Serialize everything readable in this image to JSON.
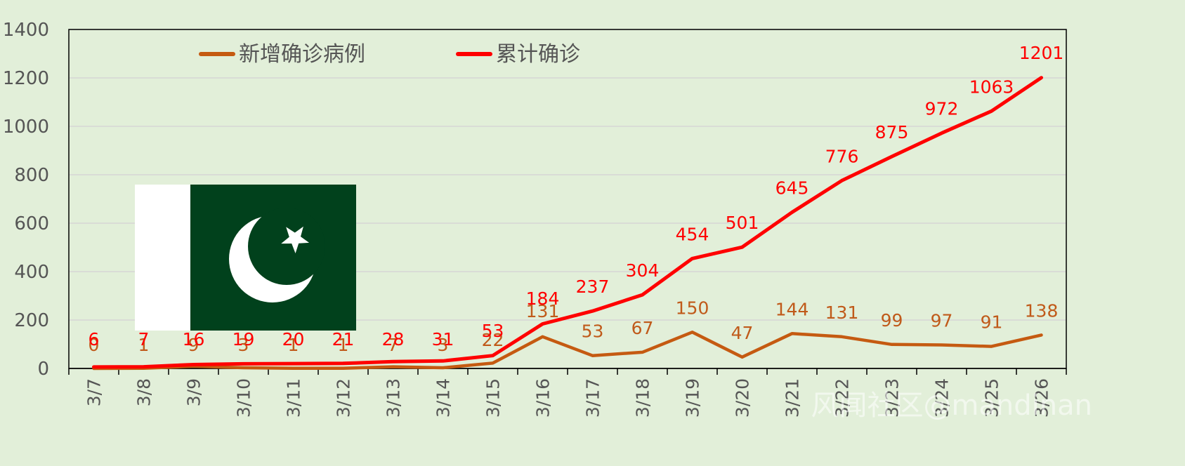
{
  "colors": {
    "background": "#e2efd9",
    "new_cases": "#c55a11",
    "cumulative": "#ff0000",
    "flag_green": "#01411c",
    "flag_white": "#ffffff"
  },
  "watermark": "风闻社区@mandinan",
  "chart_data": {
    "type": "line",
    "categories": [
      "3/7",
      "3/8",
      "3/9",
      "3/10",
      "3/11",
      "3/12",
      "3/13",
      "3/14",
      "3/15",
      "3/16",
      "3/17",
      "3/18",
      "3/19",
      "3/20",
      "3/21",
      "3/22",
      "3/23",
      "3/24",
      "3/25",
      "3/26"
    ],
    "series": [
      {
        "name": "新增确诊病例",
        "color": "#c55a11",
        "values": [
          0,
          1,
          9,
          3,
          1,
          1,
          7,
          3,
          22,
          131,
          53,
          67,
          150,
          47,
          144,
          131,
          99,
          97,
          91,
          138
        ]
      },
      {
        "name": "累计确诊",
        "color": "#ff0000",
        "values": [
          6,
          7,
          16,
          19,
          20,
          21,
          28,
          31,
          53,
          184,
          237,
          304,
          454,
          501,
          645,
          776,
          875,
          972,
          1063,
          1201
        ]
      }
    ],
    "yticks": [
      0,
      200,
      400,
      600,
      800,
      1000,
      1200,
      1400
    ],
    "ylim": [
      0,
      1400
    ],
    "legend_position": "top-left",
    "grid": true,
    "data_labels": true
  }
}
